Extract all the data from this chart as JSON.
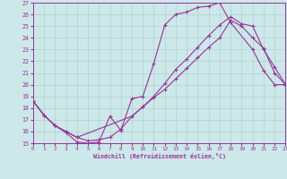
{
  "xlabel": "Windchill (Refroidissement éolien,°C)",
  "bg_color": "#cce8e8",
  "grid_color": "#aacccc",
  "line_color": "#993399",
  "xlim": [
    0,
    23
  ],
  "ylim": [
    15,
    27
  ],
  "yticks": [
    15,
    16,
    17,
    18,
    19,
    20,
    21,
    22,
    23,
    24,
    25,
    26,
    27
  ],
  "xticks": [
    0,
    1,
    2,
    3,
    4,
    5,
    6,
    7,
    8,
    9,
    10,
    11,
    12,
    13,
    14,
    15,
    16,
    17,
    18,
    19,
    20,
    21,
    22,
    23
  ],
  "line1_x": [
    0,
    1,
    2,
    3,
    4,
    5,
    6,
    7,
    8,
    9,
    10,
    11,
    12,
    13,
    14,
    15,
    16,
    17,
    18,
    20,
    21,
    22,
    23
  ],
  "line1_y": [
    18.6,
    17.4,
    16.5,
    15.9,
    15.1,
    15.0,
    15.1,
    17.3,
    16.1,
    18.8,
    19.0,
    21.8,
    25.1,
    26.0,
    26.2,
    26.6,
    26.7,
    27.0,
    25.3,
    23.0,
    21.2,
    20.0,
    20.0
  ],
  "line2_x": [
    0,
    1,
    2,
    3,
    4,
    5,
    6,
    7,
    8,
    9,
    10,
    11,
    12,
    13,
    14,
    15,
    16,
    17,
    18,
    19,
    20,
    21,
    22,
    23
  ],
  "line2_y": [
    18.6,
    17.4,
    16.5,
    16.0,
    15.5,
    15.2,
    15.3,
    15.5,
    16.2,
    17.3,
    18.1,
    18.9,
    19.6,
    20.5,
    21.4,
    22.3,
    23.2,
    24.0,
    25.5,
    25.0,
    24.0,
    23.1,
    21.0,
    20.0
  ],
  "line3_x": [
    0,
    1,
    2,
    3,
    4,
    9,
    10,
    11,
    12,
    13,
    14,
    15,
    16,
    17,
    18,
    19,
    20,
    21,
    22,
    23
  ],
  "line3_y": [
    18.6,
    17.4,
    16.5,
    16.0,
    15.5,
    17.3,
    18.1,
    19.0,
    20.1,
    21.3,
    22.2,
    23.2,
    24.2,
    25.1,
    25.8,
    25.2,
    25.0,
    23.0,
    21.5,
    20.0
  ]
}
